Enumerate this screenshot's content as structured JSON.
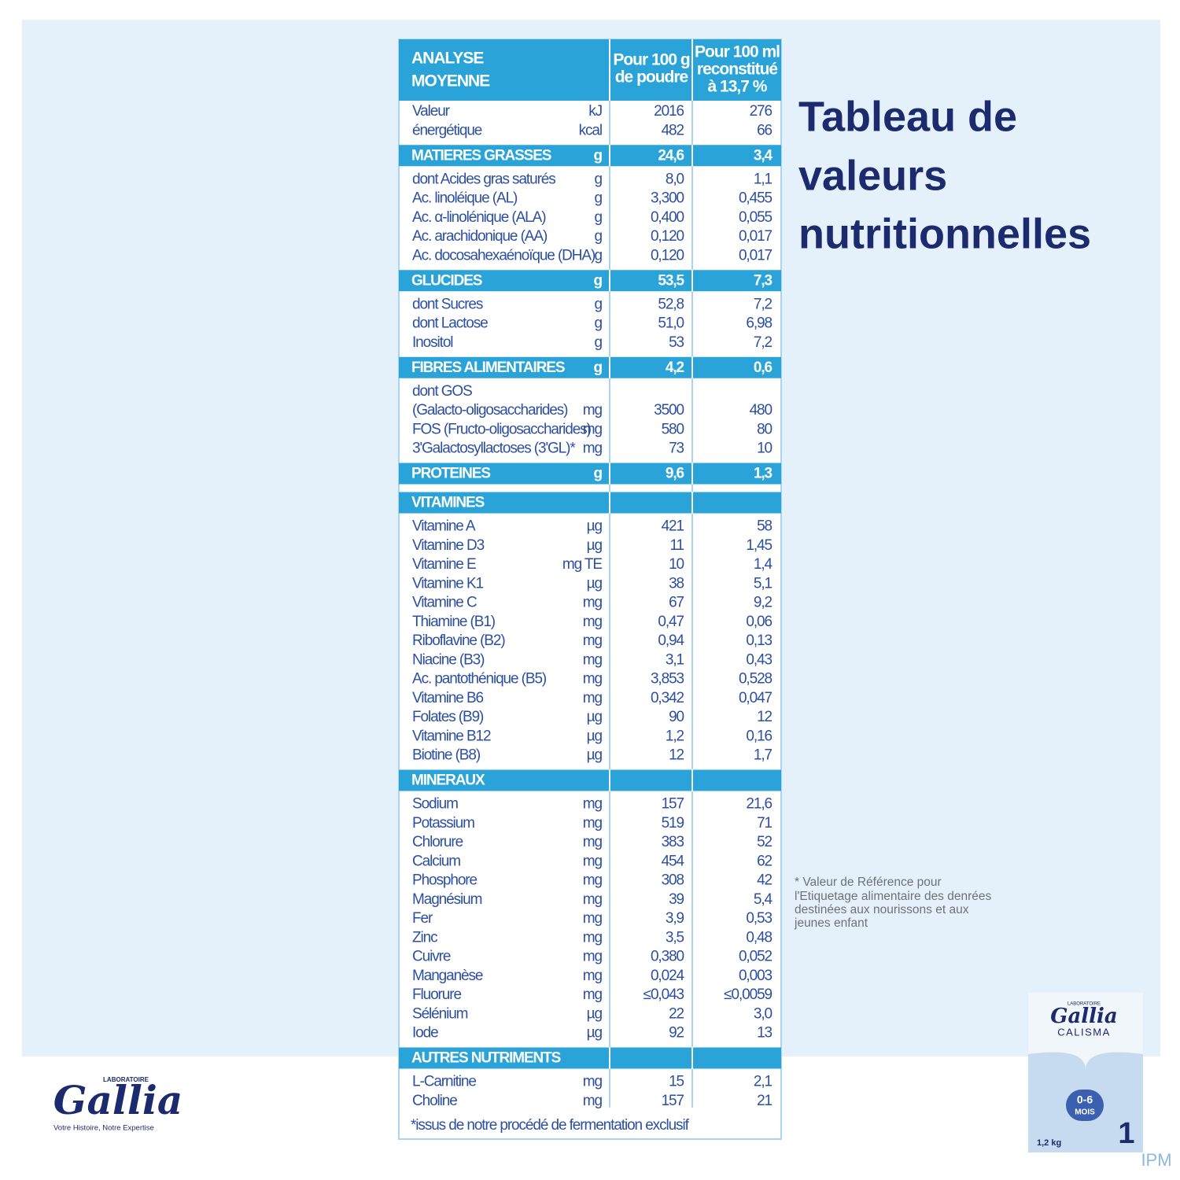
{
  "title": {
    "lines": [
      "Tableau de",
      "valeurs",
      "nutritionnelles"
    ]
  },
  "table": {
    "header": {
      "analysis": [
        "ANALYSE",
        "MOYENNE"
      ],
      "per_100g": [
        "Pour 100 g",
        "de poudre"
      ],
      "per_100ml": [
        "Pour 100 ml",
        "reconstitué",
        "à 13,7 %"
      ]
    },
    "energy": [
      [
        "Valeur",
        "kJ",
        "2016",
        "276"
      ],
      [
        "énergétique",
        "kcal",
        "482",
        "66"
      ]
    ],
    "sections": [
      {
        "name": "MATIERES GRASSES",
        "unit": "g",
        "per_100g": "24,6",
        "per_100ml": "3,4",
        "rows": [
          [
            "dont Acides gras saturés",
            "g",
            "8,0",
            "1,1"
          ],
          [
            "Ac. linoléique (AL)",
            "g",
            "3,300",
            "0,455"
          ],
          [
            "Ac. α-linolénique (ALA)",
            "g",
            "0,400",
            "0,055"
          ],
          [
            "Ac. arachidonique (AA)",
            "g",
            "0,120",
            "0,017"
          ],
          [
            "Ac. docosahexaénoïque (DHA)",
            "g",
            "0,120",
            "0,017"
          ]
        ]
      },
      {
        "name": "GLUCIDES",
        "unit": "g",
        "per_100g": "53,5",
        "per_100ml": "7,3",
        "rows": [
          [
            "dont Sucres",
            "g",
            "52,8",
            "7,2"
          ],
          [
            "dont Lactose",
            "g",
            "51,0",
            "6,98"
          ],
          [
            "Inositol",
            "g",
            "53",
            "7,2"
          ]
        ]
      },
      {
        "name": "FIBRES ALIMENTAIRES",
        "unit": "g",
        "per_100g": "4,2",
        "per_100ml": "0,6",
        "rows": [
          [
            "dont GOS"
          ],
          [
            "(Galacto-oligosaccharides)",
            "mg",
            "3500",
            "480"
          ],
          [
            "FOS (Fructo-oligosaccharides)",
            "mg",
            "580",
            "80"
          ],
          [
            "3'Galactosyllactoses (3'GL)*",
            "mg",
            "73",
            "10"
          ]
        ]
      },
      {
        "name": "PROTEINES",
        "unit": "g",
        "per_100g": "9,6",
        "per_100ml": "1,3",
        "rows": []
      },
      {
        "name": "VITAMINES",
        "rows": [
          [
            "Vitamine A",
            "µg",
            "421",
            "58"
          ],
          [
            "Vitamine D3",
            "µg",
            "11",
            "1,45"
          ],
          [
            "Vitamine E",
            "mg TE",
            "10",
            "1,4"
          ],
          [
            "Vitamine K1",
            "µg",
            "38",
            "5,1"
          ],
          [
            "Vitamine C",
            "mg",
            "67",
            "9,2"
          ],
          [
            "Thiamine (B1)",
            "mg",
            "0,47",
            "0,06"
          ],
          [
            "Riboflavine (B2)",
            "mg",
            "0,94",
            "0,13"
          ],
          [
            "Niacine (B3)",
            "mg",
            "3,1",
            "0,43"
          ],
          [
            "Ac. pantothénique (B5)",
            "mg",
            "3,853",
            "0,528"
          ],
          [
            "Vitamine B6",
            "mg",
            "0,342",
            "0,047"
          ],
          [
            "Folates (B9)",
            "µg",
            "90",
            "12"
          ],
          [
            "Vitamine B12",
            "µg",
            "1,2",
            "0,16"
          ],
          [
            "Biotine (B8)",
            "µg",
            "12",
            "1,7"
          ]
        ]
      },
      {
        "name": "MINERAUX",
        "rows": [
          [
            "Sodium",
            "mg",
            "157",
            "21,6"
          ],
          [
            "Potassium",
            "mg",
            "519",
            "71"
          ],
          [
            "Chlorure",
            "mg",
            "383",
            "52"
          ],
          [
            "Calcium",
            "mg",
            "454",
            "62"
          ],
          [
            "Phosphore",
            "mg",
            "308",
            "42"
          ],
          [
            "Magnésium",
            "mg",
            "39",
            "5,4"
          ],
          [
            "Fer",
            "mg",
            "3,9",
            "0,53"
          ],
          [
            "Zinc",
            "mg",
            "3,5",
            "0,48"
          ],
          [
            "Cuivre",
            "mg",
            "0,380",
            "0,052"
          ],
          [
            "Manganèse",
            "mg",
            "0,024",
            "0,003"
          ],
          [
            "Fluorure",
            "mg",
            "≤0,043",
            "≤0,0059"
          ],
          [
            "Sélénium",
            "µg",
            "22",
            "3,0"
          ],
          [
            "Iode",
            "µg",
            "92",
            "13"
          ]
        ]
      },
      {
        "name": "AUTRES NUTRIMENTS",
        "rows": [
          [
            "L-Carnitine",
            "mg",
            "15",
            "2,1"
          ],
          [
            "Choline",
            "mg",
            "157",
            "21"
          ]
        ]
      }
    ],
    "footnote": "*issus de notre procédé de fermentation exclusif"
  },
  "reference_note": [
    "* Valeur de Référence pour",
    "l'Etiquetage alimentaire des denrées",
    "destinées aux nourissons et aux",
    "jeunes enfant"
  ],
  "brand": {
    "label": "LABORATOIRE",
    "name": "Gallia",
    "tagline": "Votre Histoire, Notre Expertise"
  },
  "product": {
    "label": "LABORATOIRE",
    "brand": "Gallia",
    "name": "CALISMA",
    "age": "0-6",
    "age_unit": "MOIS",
    "weight": "1,2 kg",
    "stage": "1"
  },
  "watermark": "IPM"
}
